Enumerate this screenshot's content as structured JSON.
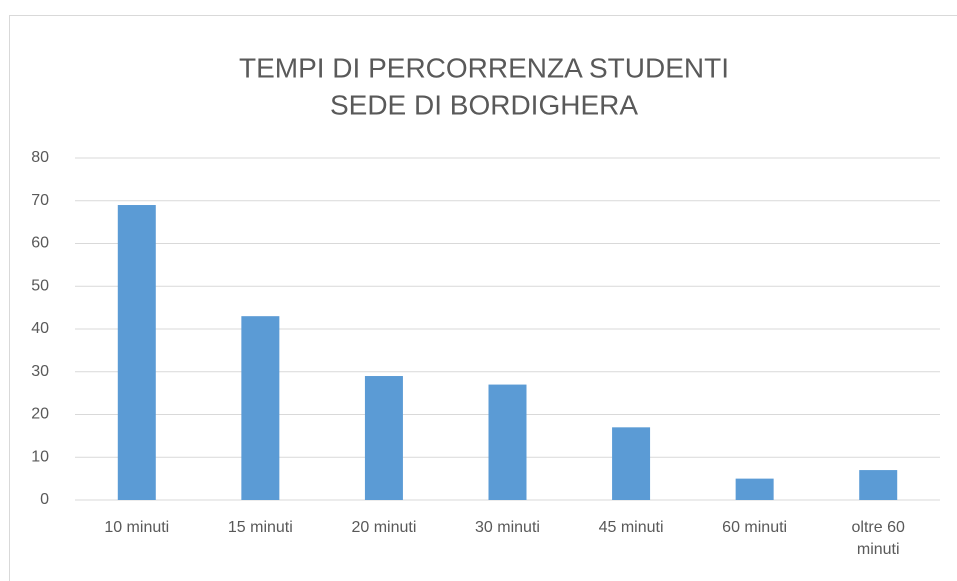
{
  "chart_data": {
    "type": "bar",
    "title": [
      "TEMPI DI PERCORRENZA STUDENTI",
      "SEDE DI BORDIGHERA"
    ],
    "categories": [
      "10 minuti",
      "15 minuti",
      "20 minuti",
      "30 minuti",
      "45 minuti",
      "60 minuti",
      "oltre 60 minuti"
    ],
    "values": [
      69,
      43,
      29,
      27,
      17,
      5,
      7
    ],
    "color": "#5b9bd5",
    "ylim": [
      0,
      80
    ],
    "yticks": [
      0,
      10,
      20,
      30,
      40,
      50,
      60,
      70,
      80
    ],
    "grid": true
  }
}
